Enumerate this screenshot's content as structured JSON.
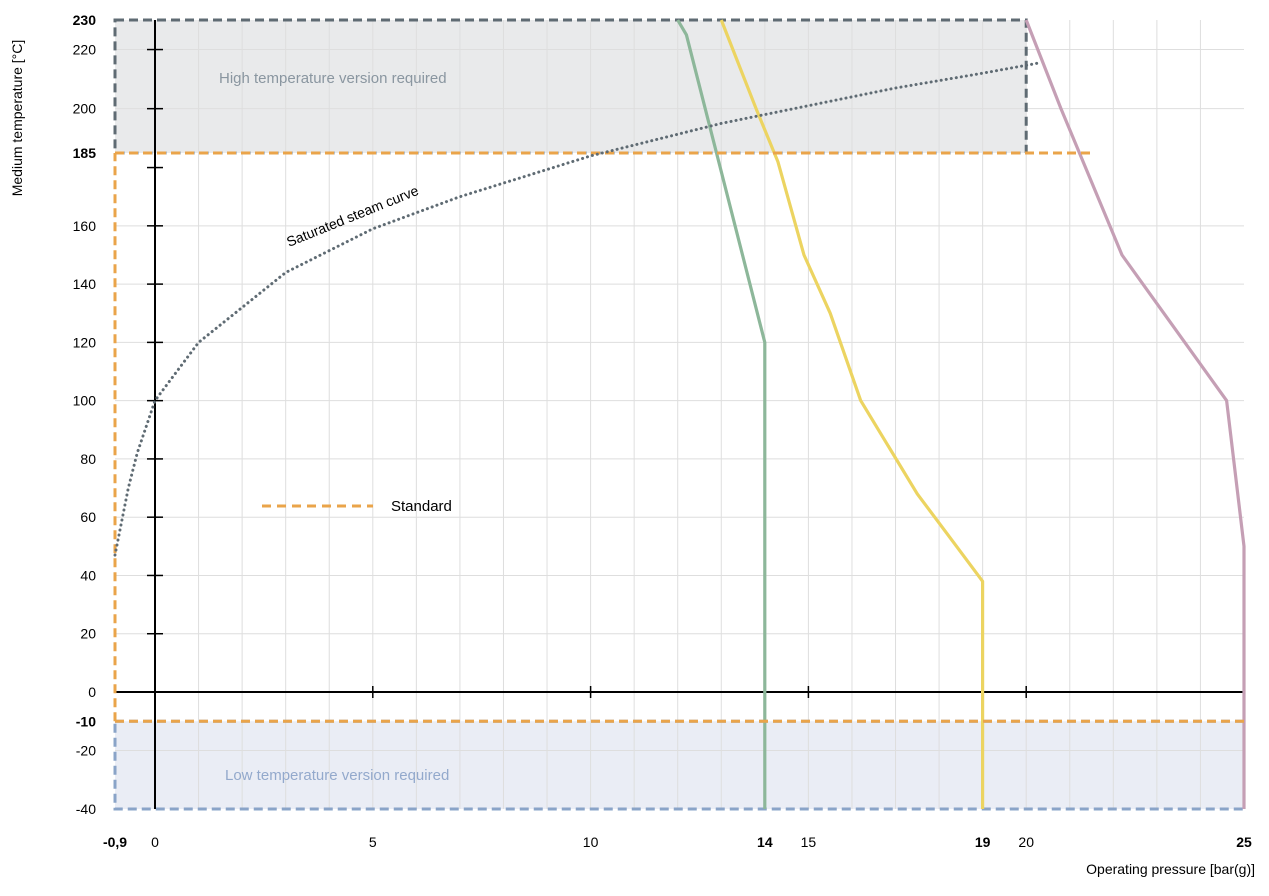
{
  "chart_data": {
    "type": "line",
    "ylabel": "Medium temperature [°C]",
    "xlabel": "Operating pressure [bar(g)]",
    "xlim": [
      -0.9,
      25
    ],
    "ylim": [
      -40,
      230
    ],
    "x_ticks": [
      {
        "value": -0.9,
        "label": "-0,9",
        "bold": true
      },
      {
        "value": 0,
        "label": "0",
        "bold": false
      },
      {
        "value": 5,
        "label": "5",
        "bold": false
      },
      {
        "value": 10,
        "label": "10",
        "bold": false
      },
      {
        "value": 14,
        "label": "14",
        "bold": true
      },
      {
        "value": 15,
        "label": "15",
        "bold": false
      },
      {
        "value": 19,
        "label": "19",
        "bold": true
      },
      {
        "value": 20,
        "label": "20",
        "bold": false
      },
      {
        "value": 25,
        "label": "25",
        "bold": true
      }
    ],
    "y_ticks": [
      {
        "value": 230,
        "label": "230",
        "bold": true
      },
      {
        "value": 220,
        "label": "220",
        "bold": false
      },
      {
        "value": 200,
        "label": "200",
        "bold": false
      },
      {
        "value": 185,
        "label": "185",
        "bold": true
      },
      {
        "value": 160,
        "label": "160",
        "bold": false
      },
      {
        "value": 140,
        "label": "140",
        "bold": false
      },
      {
        "value": 120,
        "label": "120",
        "bold": false
      },
      {
        "value": 100,
        "label": "100",
        "bold": false
      },
      {
        "value": 80,
        "label": "80",
        "bold": false
      },
      {
        "value": 60,
        "label": "60",
        "bold": false
      },
      {
        "value": 40,
        "label": "40",
        "bold": false
      },
      {
        "value": 20,
        "label": "20",
        "bold": false
      },
      {
        "value": 0,
        "label": "0",
        "bold": false
      },
      {
        "value": -10,
        "label": "-10",
        "bold": true
      },
      {
        "value": -20,
        "label": "-20",
        "bold": false
      },
      {
        "value": -40,
        "label": "-40",
        "bold": false
      }
    ],
    "regions": [
      {
        "label": "High temperature version required",
        "x": [
          -0.9,
          20
        ],
        "y": [
          185,
          230
        ],
        "fill": "#e9eaeb",
        "border": "#5f6b73",
        "text_color": "#8a96a0"
      },
      {
        "label": "Low temperature version required",
        "x": [
          -0.9,
          25
        ],
        "y": [
          -40,
          -10
        ],
        "fill": "#eaedf5",
        "border": "#8aa4c8",
        "text_color": "#93a9cc"
      }
    ],
    "standard": {
      "label": "Standard",
      "color": "#eaa44a",
      "x": [
        -0.9,
        25
      ],
      "y": [
        -10,
        185
      ]
    },
    "saturated_steam": {
      "label": "Saturated steam curve",
      "color": "#5f6b73",
      "points": [
        [
          -0.9,
          47
        ],
        [
          -0.6,
          70
        ],
        [
          -0.4,
          82
        ],
        [
          0,
          100
        ],
        [
          1,
          120
        ],
        [
          3,
          144
        ],
        [
          5,
          159
        ],
        [
          7,
          170
        ],
        [
          10,
          184
        ],
        [
          13,
          195
        ],
        [
          15,
          201
        ],
        [
          17,
          207
        ],
        [
          19,
          212
        ],
        [
          20.3,
          215.5
        ]
      ]
    },
    "series": [
      {
        "color": "#8db79a",
        "points": [
          [
            14,
            -40
          ],
          [
            14,
            120
          ],
          [
            12.2,
            225
          ],
          [
            12,
            230
          ]
        ]
      },
      {
        "color": "#ecd461",
        "points": [
          [
            19,
            -40
          ],
          [
            19,
            38
          ],
          [
            18.4,
            50
          ],
          [
            17.5,
            68
          ],
          [
            16.2,
            100
          ],
          [
            15.5,
            130
          ],
          [
            14.9,
            150
          ],
          [
            14.3,
            182
          ],
          [
            13.8,
            200
          ],
          [
            13,
            230
          ]
        ]
      },
      {
        "color": "#c59fb5",
        "points": [
          [
            25,
            -40
          ],
          [
            25,
            50
          ],
          [
            24.6,
            100
          ],
          [
            22.2,
            150
          ],
          [
            20.8,
            200
          ],
          [
            20,
            230
          ]
        ]
      }
    ]
  }
}
